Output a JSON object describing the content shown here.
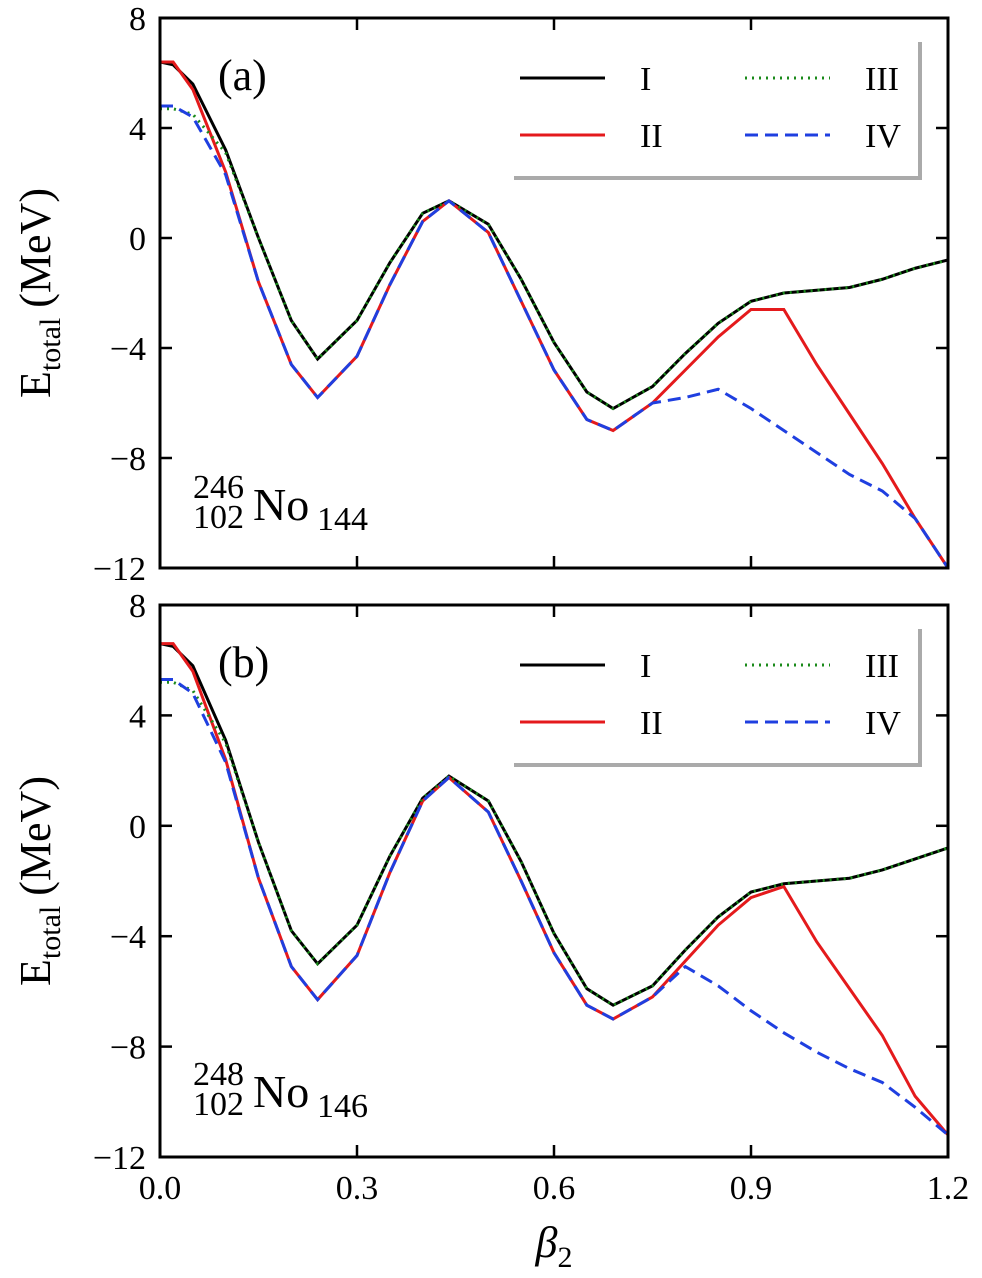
{
  "chart_data": [
    {
      "type": "line",
      "label": "(a)",
      "nucleus": {
        "mass": "246",
        "proton": "102",
        "symbol": "No",
        "neutron": "144"
      },
      "ylabel": {
        "main": "E",
        "sub": "total",
        "unit": "(MeV)"
      },
      "x": [
        0,
        0.02,
        0.05,
        0.1,
        0.15,
        0.2,
        0.24,
        0.3,
        0.35,
        0.4,
        0.44,
        0.5,
        0.55,
        0.6,
        0.65,
        0.69,
        0.75,
        0.8,
        0.85,
        0.9,
        0.95,
        1.0,
        1.05,
        1.1,
        1.15,
        1.2
      ],
      "series": [
        {
          "name": "I",
          "color": "#000000",
          "dash": "solid",
          "values": [
            6.4,
            6.3,
            5.6,
            3.2,
            0.0,
            -3.0,
            -4.4,
            -3.0,
            -0.9,
            0.9,
            1.35,
            0.5,
            -1.5,
            -3.8,
            -5.6,
            -6.2,
            -5.4,
            -4.2,
            -3.1,
            -2.3,
            -2.0,
            -1.9,
            -1.8,
            -1.5,
            -1.1,
            -0.8
          ]
        },
        {
          "name": "II",
          "color": "#e41a1c",
          "dash": "solid",
          "values": [
            6.4,
            6.4,
            5.4,
            2.4,
            -1.6,
            -4.6,
            -5.8,
            -4.3,
            -1.7,
            0.6,
            1.35,
            0.2,
            -2.3,
            -4.8,
            -6.6,
            -7.0,
            -6.0,
            -4.8,
            -3.6,
            -2.6,
            -2.6,
            -4.6,
            -6.4,
            -8.2,
            -10.2,
            -12
          ]
        },
        {
          "name": "III",
          "color": "#1a8a1a",
          "dash": "dotted",
          "values": [
            4.7,
            4.7,
            4.5,
            3.1,
            0.0,
            -3.0,
            -4.4,
            -3.0,
            -0.9,
            0.9,
            1.35,
            0.5,
            -1.5,
            -3.8,
            -5.6,
            -6.2,
            -5.4,
            -4.2,
            -3.1,
            -2.3,
            -2.0,
            -1.9,
            -1.8,
            -1.5,
            -1.1,
            -0.8
          ]
        },
        {
          "name": "IV",
          "color": "#1f3fe0",
          "dash": "dashed",
          "values": [
            4.8,
            4.8,
            4.4,
            2.3,
            -1.6,
            -4.6,
            -5.8,
            -4.3,
            -1.7,
            0.6,
            1.35,
            0.2,
            -2.3,
            -4.8,
            -6.6,
            -7.0,
            -6.0,
            -5.8,
            -5.5,
            -6.2,
            -7.0,
            -7.8,
            -8.6,
            -9.2,
            -10.2,
            -12
          ]
        }
      ],
      "xlim": [
        0,
        1.2
      ],
      "xticks": [
        0,
        0.3,
        0.6,
        0.9,
        1.2
      ],
      "ylim": [
        -12,
        8
      ],
      "yticks": [
        {
          "value": -12,
          "label": "−12"
        },
        {
          "value": -8,
          "label": "−8"
        },
        {
          "value": -4,
          "label": "−4"
        },
        0,
        4,
        8
      ],
      "legend": "upper right",
      "grid": false
    },
    {
      "type": "line",
      "label": "(b)",
      "nucleus": {
        "mass": "248",
        "proton": "102",
        "symbol": "No",
        "neutron": "146"
      },
      "ylabel": {
        "main": "E",
        "sub": "total",
        "unit": "(MeV)"
      },
      "xlabel": {
        "symbol": "β",
        "sub": "2"
      },
      "x": [
        0,
        0.02,
        0.05,
        0.1,
        0.15,
        0.2,
        0.24,
        0.3,
        0.35,
        0.4,
        0.44,
        0.5,
        0.55,
        0.6,
        0.65,
        0.69,
        0.75,
        0.8,
        0.85,
        0.9,
        0.95,
        1.0,
        1.05,
        1.1,
        1.15,
        1.2
      ],
      "series": [
        {
          "name": "I",
          "color": "#000000",
          "dash": "solid",
          "values": [
            6.6,
            6.5,
            5.8,
            3.1,
            -0.6,
            -3.8,
            -5.0,
            -3.6,
            -1.1,
            1.0,
            1.8,
            0.9,
            -1.3,
            -3.9,
            -5.9,
            -6.5,
            -5.8,
            -4.5,
            -3.3,
            -2.4,
            -2.1,
            -2.0,
            -1.9,
            -1.6,
            -1.2,
            -0.8
          ]
        },
        {
          "name": "II",
          "color": "#e41a1c",
          "dash": "solid",
          "values": [
            6.6,
            6.6,
            5.6,
            2.4,
            -1.9,
            -5.1,
            -6.3,
            -4.7,
            -1.7,
            0.9,
            1.75,
            0.5,
            -2.0,
            -4.6,
            -6.5,
            -7.0,
            -6.2,
            -4.9,
            -3.6,
            -2.6,
            -2.2,
            -4.2,
            -5.9,
            -7.6,
            -9.8,
            -11.2
          ]
        },
        {
          "name": "III",
          "color": "#1a8a1a",
          "dash": "dotted",
          "values": [
            5.2,
            5.2,
            4.9,
            3.0,
            -0.6,
            -3.8,
            -5.0,
            -3.6,
            -1.1,
            1.0,
            1.8,
            0.9,
            -1.3,
            -3.9,
            -5.9,
            -6.5,
            -5.8,
            -4.5,
            -3.3,
            -2.4,
            -2.1,
            -2.0,
            -1.9,
            -1.6,
            -1.2,
            -0.8
          ]
        },
        {
          "name": "IV",
          "color": "#1f3fe0",
          "dash": "dashed",
          "values": [
            5.3,
            5.3,
            4.8,
            2.3,
            -1.9,
            -5.1,
            -6.3,
            -4.7,
            -1.7,
            0.9,
            1.75,
            0.5,
            -2.0,
            -4.6,
            -6.5,
            -7.0,
            -6.2,
            -5.1,
            -5.8,
            -6.7,
            -7.5,
            -8.2,
            -8.8,
            -9.3,
            -10.2,
            -11.2
          ]
        }
      ],
      "xlim": [
        0,
        1.2
      ],
      "xticks": [
        {
          "value": 0,
          "label": "0.0"
        },
        0.3,
        0.6,
        0.9,
        1.2
      ],
      "ylim": [
        -12,
        8
      ],
      "yticks": [
        {
          "value": -12,
          "label": "−12"
        },
        {
          "value": -8,
          "label": "−8"
        },
        {
          "value": -4,
          "label": "−4"
        },
        0,
        4,
        8
      ],
      "legend": "upper right",
      "grid": false
    }
  ]
}
